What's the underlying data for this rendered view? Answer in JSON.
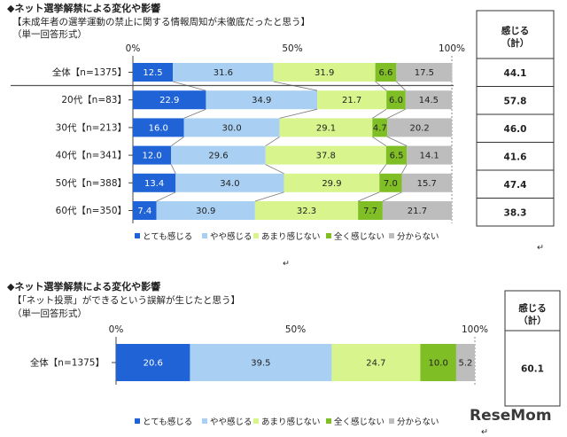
{
  "chart_data": [
    {
      "type": "bar",
      "stacked": true,
      "orientation": "horizontal",
      "title": "◆ネット選挙解禁による変化や影響",
      "subtitle": "【未成年者の選挙運動の禁止に関する情報周知が未徹底だったと思う】",
      "note": "（単一回答形式）",
      "axis_ticks": [
        "0%",
        "50%",
        "100%"
      ],
      "xlim": [
        0,
        100
      ],
      "categories": [
        "全体【n=1375】",
        "20代【n=83】",
        "30代【n=213】",
        "40代【n=341】",
        "50代【n=388】",
        "60代【n=350】"
      ],
      "series": [
        {
          "name": "とても感じる",
          "color": "#1f63d6",
          "values": [
            12.5,
            22.9,
            16.0,
            12.0,
            13.4,
            7.4
          ]
        },
        {
          "name": "やや感じる",
          "color": "#a9d0f3",
          "values": [
            31.6,
            34.9,
            30.0,
            29.6,
            34.0,
            30.9
          ]
        },
        {
          "name": "あまり感じない",
          "color": "#d7f58c",
          "values": [
            31.9,
            21.7,
            29.1,
            37.8,
            29.9,
            32.3
          ]
        },
        {
          "name": "全く感じない",
          "color": "#80be26",
          "values": [
            6.6,
            6.0,
            4.7,
            6.5,
            7.0,
            7.7
          ]
        },
        {
          "name": "分からない",
          "color": "#bdbdbd",
          "values": [
            17.5,
            14.5,
            20.2,
            14.1,
            15.7,
            21.7
          ]
        }
      ],
      "summary": {
        "header": [
          "感じる",
          "（計）"
        ],
        "values": [
          "44.1",
          "57.8",
          "46.0",
          "41.6",
          "47.4",
          "38.3"
        ]
      }
    },
    {
      "type": "bar",
      "stacked": true,
      "orientation": "horizontal",
      "title": "◆ネット選挙解禁による変化や影響",
      "subtitle": "【「ネット投票」ができるという誤解が生じたと思う】",
      "note": "（単一回答形式）",
      "axis_ticks": [
        "0%",
        "50%",
        "100%"
      ],
      "xlim": [
        0,
        100
      ],
      "categories": [
        "全体【n=1375】"
      ],
      "series": [
        {
          "name": "とても感じる",
          "color": "#1f63d6",
          "values": [
            20.6
          ]
        },
        {
          "name": "やや感じる",
          "color": "#a9d0f3",
          "values": [
            39.5
          ]
        },
        {
          "name": "あまり感じない",
          "color": "#d7f58c",
          "values": [
            24.7
          ]
        },
        {
          "name": "全く感じない",
          "color": "#80be26",
          "values": [
            10.0
          ]
        },
        {
          "name": "分からない",
          "color": "#bdbdbd",
          "values": [
            5.2
          ]
        }
      ],
      "summary": {
        "header": [
          "感じる",
          "（計）"
        ],
        "values": [
          "60.1"
        ]
      }
    }
  ],
  "marks": [
    "↵",
    "↵",
    "↵"
  ],
  "logo": "ReseMom"
}
